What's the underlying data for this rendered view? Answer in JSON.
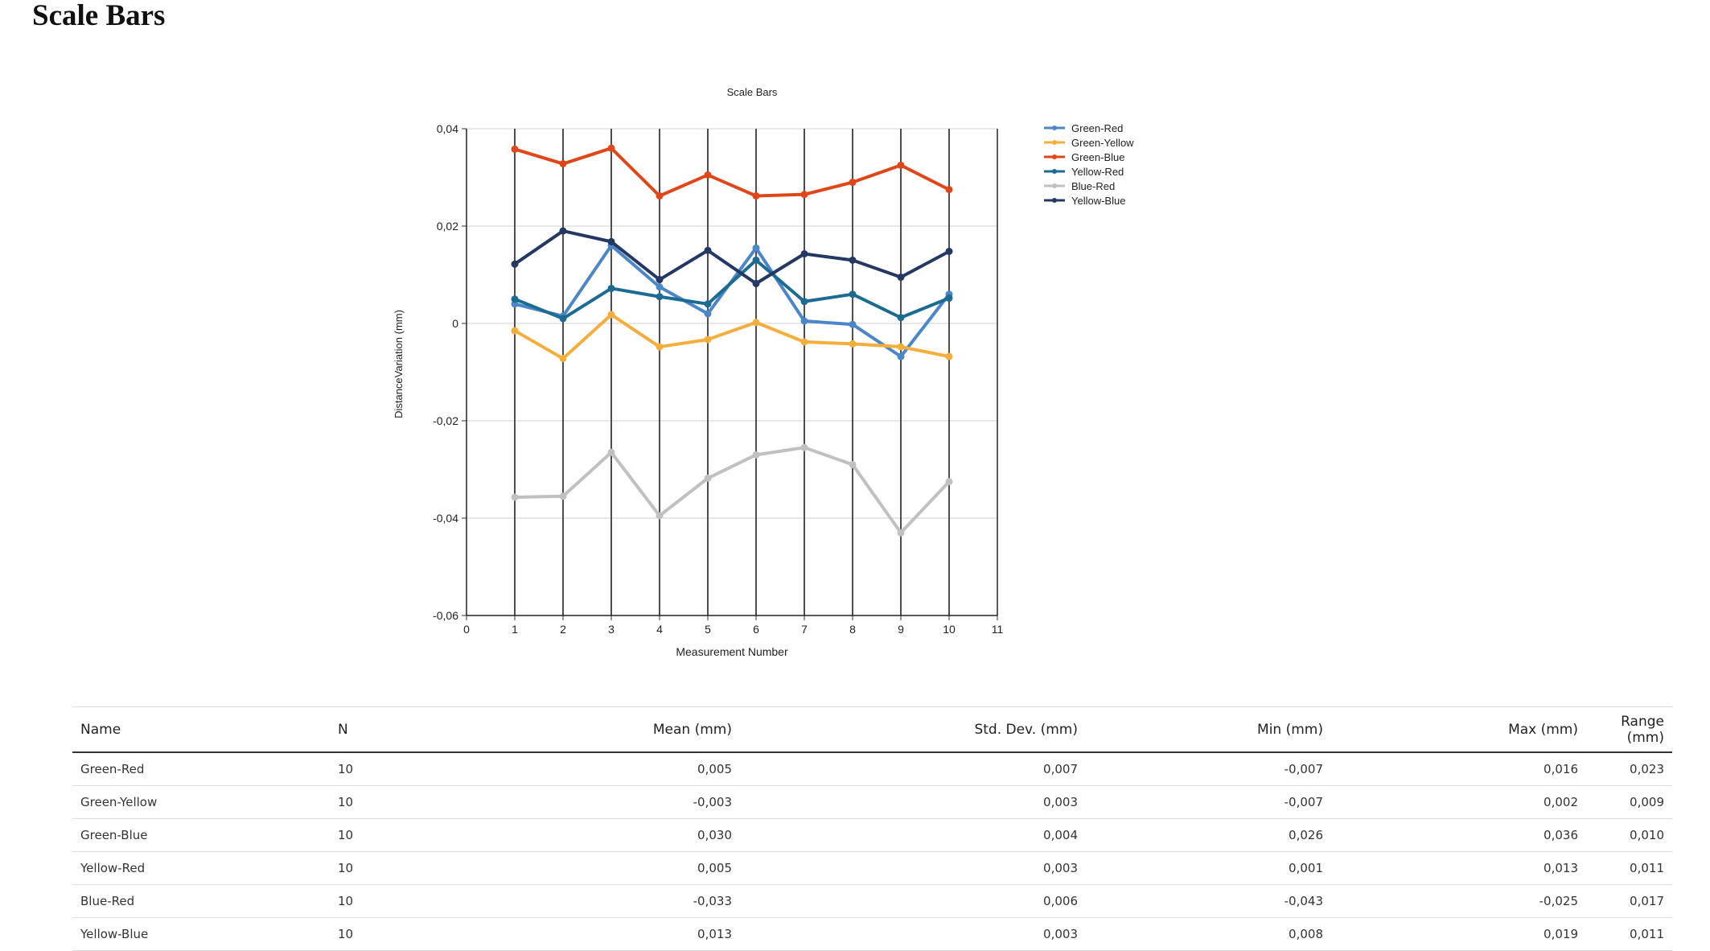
{
  "page": {
    "title": "Scale Bars"
  },
  "chart_data": {
    "type": "line",
    "title": "Scale Bars",
    "xlabel": "Measurement Number",
    "ylabel": "DistanceVariation (mm)",
    "xlim": [
      0,
      11
    ],
    "ylim": [
      -0.06,
      0.04
    ],
    "xticks": [
      "0",
      "1",
      "2",
      "3",
      "4",
      "5",
      "6",
      "7",
      "8",
      "9",
      "10",
      "11"
    ],
    "yticks": [
      {
        "value": 0.04,
        "label": "0,04"
      },
      {
        "value": 0.02,
        "label": "0,02"
      },
      {
        "value": 0,
        "label": "0"
      },
      {
        "value": -0.02,
        "label": "-0,02"
      },
      {
        "value": -0.04,
        "label": "-0,04"
      },
      {
        "value": -0.06,
        "label": "-0,06"
      }
    ],
    "legend_position": "right",
    "x": [
      1,
      2,
      3,
      4,
      5,
      6,
      7,
      8,
      9,
      10
    ],
    "series": [
      {
        "name": "Green-Red",
        "color": "#4a86c8",
        "values": [
          0.004,
          0.0015,
          0.016,
          0.0075,
          0.002,
          0.0155,
          0.0005,
          -0.0002,
          -0.0068,
          0.006
        ]
      },
      {
        "name": "Green-Yellow",
        "color": "#f5ae3c",
        "values": [
          -0.0015,
          -0.0072,
          0.0018,
          -0.0048,
          -0.0033,
          0.0002,
          -0.0038,
          -0.0042,
          -0.0048,
          -0.0068
        ]
      },
      {
        "name": "Green-Blue",
        "color": "#e04618",
        "values": [
          0.0358,
          0.0328,
          0.036,
          0.0262,
          0.0305,
          0.0262,
          0.0265,
          0.029,
          0.0325,
          0.0275
        ]
      },
      {
        "name": "Yellow-Red",
        "color": "#1b6b93",
        "values": [
          0.005,
          0.001,
          0.0072,
          0.0055,
          0.004,
          0.013,
          0.0045,
          0.006,
          0.0012,
          0.0052
        ]
      },
      {
        "name": "Blue-Red",
        "color": "#c0c0c0",
        "values": [
          -0.0357,
          -0.0355,
          -0.0265,
          -0.0395,
          -0.0318,
          -0.027,
          -0.0255,
          -0.029,
          -0.043,
          -0.0325
        ]
      },
      {
        "name": "Yellow-Blue",
        "color": "#233862",
        "values": [
          0.0122,
          0.019,
          0.0168,
          0.009,
          0.015,
          0.0082,
          0.0143,
          0.013,
          0.0095,
          0.0148
        ]
      }
    ]
  },
  "table": {
    "headers": [
      "Name",
      "N",
      "Mean (mm)",
      "Std. Dev. (mm)",
      "Min (mm)",
      "Max (mm)",
      "Range (mm)"
    ],
    "rows": [
      [
        "Green-Red",
        "10",
        "0,005",
        "0,007",
        "-0,007",
        "0,016",
        "0,023"
      ],
      [
        "Green-Yellow",
        "10",
        "-0,003",
        "0,003",
        "-0,007",
        "0,002",
        "0,009"
      ],
      [
        "Green-Blue",
        "10",
        "0,030",
        "0,004",
        "0,026",
        "0,036",
        "0,010"
      ],
      [
        "Yellow-Red",
        "10",
        "0,005",
        "0,003",
        "0,001",
        "0,013",
        "0,011"
      ],
      [
        "Blue-Red",
        "10",
        "-0,033",
        "0,006",
        "-0,043",
        "-0,025",
        "0,017"
      ],
      [
        "Yellow-Blue",
        "10",
        "0,013",
        "0,003",
        "0,008",
        "0,019",
        "0,011"
      ]
    ]
  }
}
